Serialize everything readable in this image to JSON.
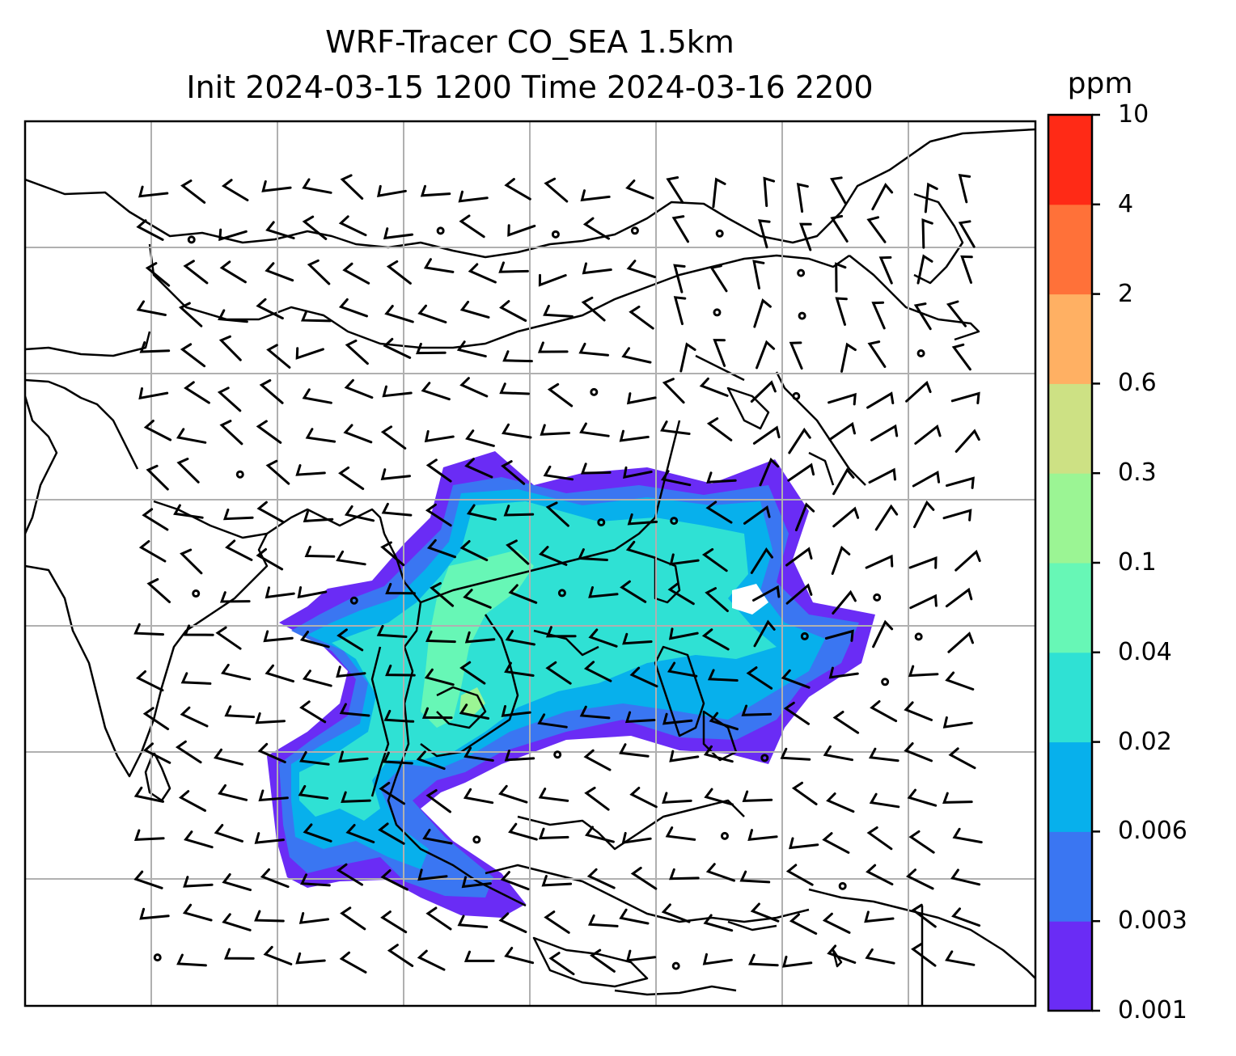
{
  "title": {
    "line1": "WRF-Tracer CO_SEA 1.5km",
    "line2": "Init 2024-03-15 1200 Time 2024-03-16 2200"
  },
  "map": {
    "projection": "lat-lon",
    "gridlines": true,
    "wind_barbs": true,
    "calm_markers": true,
    "coastline_color": "#000000",
    "grid_color": "#b0b0b0",
    "field_name": "CO tracer concentration"
  },
  "colorbar": {
    "unit": "ppm",
    "tick_labels": [
      "0.001",
      "0.003",
      "0.006",
      "0.02",
      "0.04",
      "0.1",
      "0.3",
      "0.6",
      "2",
      "4",
      "10"
    ],
    "colors": [
      "#6a2cf5",
      "#3a76f2",
      "#07b0ec",
      "#2fe1d4",
      "#67f7b6",
      "#9bf594",
      "#cde184",
      "#ffb063",
      "#ff7139",
      "#ff2a16"
    ]
  }
}
